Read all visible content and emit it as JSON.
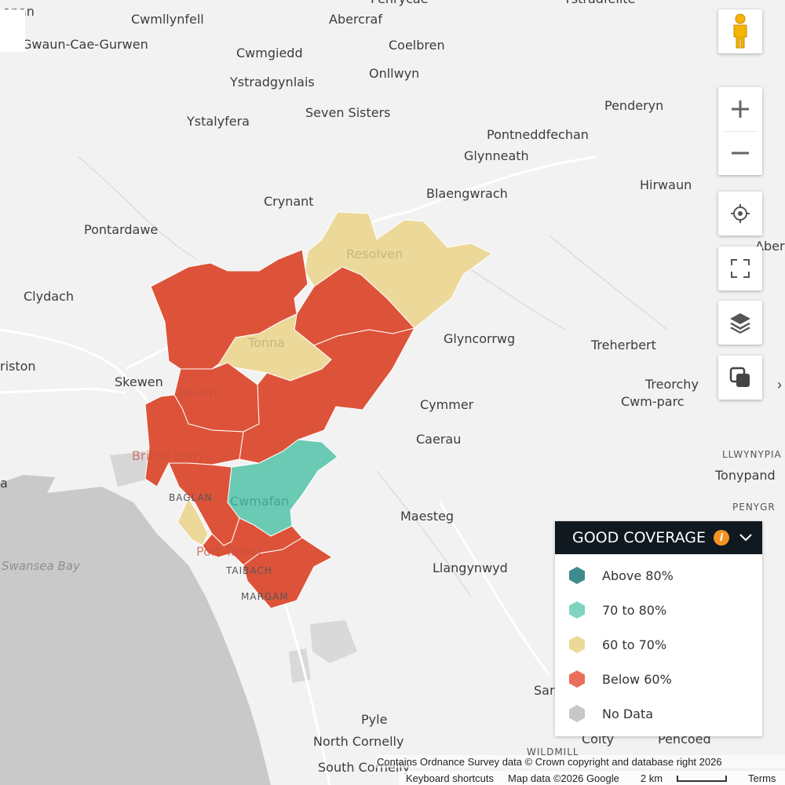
{
  "map": {
    "places": [
      {
        "id": "gwaun",
        "label": "Gwaun-Cae-Gurwen",
        "cls": ""
      },
      {
        "id": "cwmllynfell",
        "label": "Cwmllynfell",
        "cls": ""
      },
      {
        "id": "abercraf",
        "label": "Abercraf",
        "cls": ""
      },
      {
        "id": "cwmgiedd",
        "label": "Cwmgiedd",
        "cls": ""
      },
      {
        "id": "coelbren",
        "label": "Coelbren",
        "cls": ""
      },
      {
        "id": "onllwyn",
        "label": "Onllwyn",
        "cls": ""
      },
      {
        "id": "ystradgynlais",
        "label": "Ystradgynlais",
        "cls": ""
      },
      {
        "id": "seven-sisters",
        "label": "Seven Sisters",
        "cls": ""
      },
      {
        "id": "ystalyfera",
        "label": "Ystalyfera",
        "cls": ""
      },
      {
        "id": "penderyn",
        "label": "Penderyn",
        "cls": ""
      },
      {
        "id": "pontneddfechan",
        "label": "Pontneddfechan",
        "cls": ""
      },
      {
        "id": "glynneath",
        "label": "Glynneath",
        "cls": ""
      },
      {
        "id": "blaengwrach",
        "label": "Blaengwrach",
        "cls": ""
      },
      {
        "id": "crynant",
        "label": "Crynant",
        "cls": ""
      },
      {
        "id": "hirwaun",
        "label": "Hirwaun",
        "cls": ""
      },
      {
        "id": "pontardawe",
        "label": "Pontardawe",
        "cls": ""
      },
      {
        "id": "resolven",
        "label": "Resolven",
        "cls": "faint"
      },
      {
        "id": "clydach",
        "label": "Clydach",
        "cls": ""
      },
      {
        "id": "tonna",
        "label": "Tonna",
        "cls": "faint"
      },
      {
        "id": "glyncorrwg",
        "label": "Glyncorrwg",
        "cls": ""
      },
      {
        "id": "treherbert",
        "label": "Treherbert",
        "cls": ""
      },
      {
        "id": "riston",
        "label": "riston",
        "cls": ""
      },
      {
        "id": "skewen",
        "label": "Skewen",
        "cls": ""
      },
      {
        "id": "neath",
        "label": "Neath",
        "cls": "faintr"
      },
      {
        "id": "treorchy",
        "label": "Treorchy",
        "cls": ""
      },
      {
        "id": "cwm-parc",
        "label": "Cwm-parc",
        "cls": ""
      },
      {
        "id": "cymmer",
        "label": "Cymmer",
        "cls": ""
      },
      {
        "id": "caerau",
        "label": "Caerau",
        "cls": ""
      },
      {
        "id": "briton-ferry",
        "label": "Briton Ferry",
        "cls": "faintr"
      },
      {
        "id": "llwynypia",
        "label": "LLWYNYPIA",
        "cls": "small"
      },
      {
        "id": "tonypandy",
        "label": "Tonypand",
        "cls": ""
      },
      {
        "id": "baglan",
        "label": "BAGLAN",
        "cls": "small"
      },
      {
        "id": "cwmafan",
        "label": "Cwmafan",
        "cls": "faintg"
      },
      {
        "id": "maesteg",
        "label": "Maesteg",
        "cls": ""
      },
      {
        "id": "penygraig",
        "label": "PENYGR",
        "cls": "small"
      },
      {
        "id": "swansea-bay",
        "label": "Swansea Bay",
        "cls": "water"
      },
      {
        "id": "port-talbot",
        "label": "Port Talbot",
        "cls": "faintr"
      },
      {
        "id": "llangynwyd",
        "label": "Llangynwyd",
        "cls": ""
      },
      {
        "id": "taibach",
        "label": "TAIBACH",
        "cls": "small"
      },
      {
        "id": "margam",
        "label": "MARGAM",
        "cls": "small"
      },
      {
        "id": "pyle",
        "label": "Pyle",
        "cls": ""
      },
      {
        "id": "north-cornelly",
        "label": "North Cornelly",
        "cls": ""
      },
      {
        "id": "wildmill",
        "label": "WILDMILL",
        "cls": "small"
      },
      {
        "id": "coity",
        "label": "Coity",
        "cls": ""
      },
      {
        "id": "pencoed",
        "label": "Pencoed",
        "cls": ""
      },
      {
        "id": "south-cornelly",
        "label": "South Cornelly",
        "cls": ""
      },
      {
        "id": "sarn",
        "label": "Sar",
        "cls": ""
      },
      {
        "id": "a-swansea",
        "label": "a",
        "cls": ""
      },
      {
        "id": "top-penrycae",
        "label": "Penrycae",
        "cls": ""
      },
      {
        "id": "top-ystradfellte",
        "label": "Ystradfellte",
        "cls": ""
      },
      {
        "id": "top-glanaman",
        "label": "anan",
        "cls": ""
      },
      {
        "id": "aberdare",
        "label": "Aberd",
        "cls": ""
      },
      {
        "id": "llwydcoed",
        "label": "Ll",
        "cls": ""
      }
    ],
    "colors": {
      "above_80": "#3f8a8c",
      "70_to_80": "#6bcab3",
      "60_to_70": "#ecd99a",
      "below_60": "#dd533a",
      "no_data": "#c8c8c8"
    }
  },
  "controls": {
    "pegman": "pegman-icon",
    "zoom_in": "plus-icon",
    "zoom_out": "minus-icon",
    "locate": "crosshair-icon",
    "fullscreen": "fullscreen-icon",
    "layers": "layers-icon",
    "overlay": "overlay-icon"
  },
  "legend": {
    "title": "GOOD COVERAGE",
    "info_glyph": "i",
    "items": [
      {
        "label": "Above 80%",
        "color": "#3f8a8c"
      },
      {
        "label": "70 to 80%",
        "color": "#7fd3bf"
      },
      {
        "label": "60 to 70%",
        "color": "#ecd99a"
      },
      {
        "label": "Below 60%",
        "color": "#e8705a"
      },
      {
        "label": "No Data",
        "color": "#c8c8c8"
      }
    ]
  },
  "attribution": {
    "os": "Contains Ordnance Survey data © Crown copyright and database right 2026",
    "keyboard": "Keyboard shortcuts",
    "map_data": "Map data ©2026 Google",
    "scale": "2 km",
    "terms": "Terms"
  }
}
